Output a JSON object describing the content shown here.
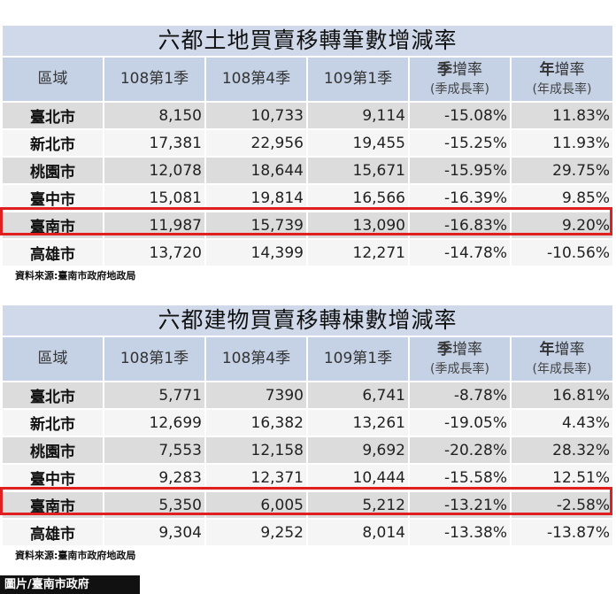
{
  "headers": {
    "region": "區域",
    "c1": "108第1季",
    "c2": "108第4季",
    "c3": "109第1季",
    "c4_main_bold": "季",
    "c4_main_rest": "增率",
    "c4_sub": "(季成長率)",
    "c5_main_bold": "年",
    "c5_main_rest": "增率",
    "c5_sub": "(年成長率)"
  },
  "tables": [
    {
      "title": "六都土地買賣移轉筆數增減率",
      "rows": [
        {
          "region": "臺北市",
          "c1": "8,150",
          "c2": "10,733",
          "c3": "9,114",
          "c4": "-15.08%",
          "c5": "11.83%"
        },
        {
          "region": "新北市",
          "c1": "17,381",
          "c2": "22,956",
          "c3": "19,455",
          "c4": "-15.25%",
          "c5": "11.93%"
        },
        {
          "region": "桃園市",
          "c1": "12,078",
          "c2": "18,644",
          "c3": "15,671",
          "c4": "-15.95%",
          "c5": "29.75%"
        },
        {
          "region": "臺中市",
          "c1": "15,081",
          "c2": "19,814",
          "c3": "16,566",
          "c4": "-16.39%",
          "c5": "9.85%"
        },
        {
          "region": "臺南市",
          "c1": "11,987",
          "c2": "15,739",
          "c3": "13,090",
          "c4": "-16.83%",
          "c5": "9.20%"
        },
        {
          "region": "高雄市",
          "c1": "13,720",
          "c2": "14,399",
          "c3": "12,271",
          "c4": "-14.78%",
          "c5": "-10.56%"
        }
      ],
      "source": "資料來源:臺南市政府地政局"
    },
    {
      "title": "六都建物買賣移轉棟數增減率",
      "rows": [
        {
          "region": "臺北市",
          "c1": "5,771",
          "c2": "7390",
          "c3": "6,741",
          "c4": "-8.78%",
          "c5": "16.81%"
        },
        {
          "region": "新北市",
          "c1": "12,699",
          "c2": "16,382",
          "c3": "13,261",
          "c4": "-19.05%",
          "c5": "4.43%"
        },
        {
          "region": "桃園市",
          "c1": "7,553",
          "c2": "12,158",
          "c3": "9,692",
          "c4": "-20.28%",
          "c5": "28.32%"
        },
        {
          "region": "臺中市",
          "c1": "9,283",
          "c2": "12,371",
          "c3": "10,444",
          "c4": "-15.58%",
          "c5": "12.51%"
        },
        {
          "region": "臺南市",
          "c1": "5,350",
          "c2": "6,005",
          "c3": "5,212",
          "c4": "-13.21%",
          "c5": "-2.58%"
        },
        {
          "region": "高雄市",
          "c1": "9,304",
          "c2": "9,252",
          "c3": "8,014",
          "c4": "-13.38%",
          "c5": "-13.87%"
        }
      ],
      "source": "資料來源:臺南市政府地政局"
    }
  ],
  "highlight_color": "#e02020",
  "credit": "圖片/臺南市政府"
}
